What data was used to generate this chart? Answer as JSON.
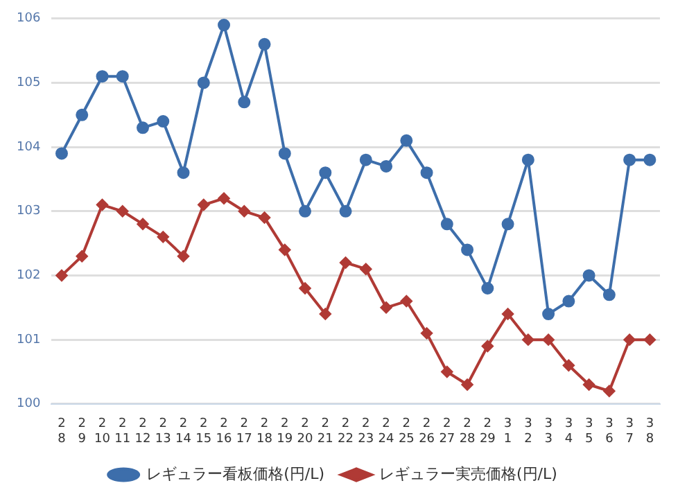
{
  "chart_data": {
    "type": "line",
    "categories": [
      "2\n8",
      "2\n9",
      "2\n10",
      "2\n11",
      "2\n12",
      "2\n13",
      "2\n14",
      "2\n15",
      "2\n16",
      "2\n17",
      "2\n18",
      "2\n19",
      "2\n20",
      "2\n21",
      "2\n22",
      "2\n23",
      "2\n24",
      "2\n25",
      "2\n26",
      "2\n27",
      "2\n28",
      "2\n29",
      "3\n1",
      "3\n2",
      "3\n3",
      "3\n4",
      "3\n5",
      "3\n6",
      "3\n7",
      "3\n8"
    ],
    "series": [
      {
        "name": "レギュラー看板価格(円/L)",
        "color": "#3d6eab",
        "marker": "circle",
        "values": [
          103.9,
          104.5,
          105.1,
          105.1,
          104.3,
          104.4,
          103.6,
          105.0,
          105.9,
          104.7,
          105.6,
          103.9,
          103.0,
          103.6,
          103.0,
          103.8,
          103.7,
          104.1,
          103.6,
          102.8,
          102.4,
          101.8,
          102.8,
          103.8,
          101.4,
          101.6,
          102.0,
          101.7,
          103.8,
          103.8
        ]
      },
      {
        "name": "レギュラー実売価格(円/L)",
        "color": "#b03a35",
        "marker": "diamond",
        "values": [
          102.0,
          102.3,
          103.1,
          103.0,
          102.8,
          102.6,
          102.3,
          103.1,
          103.2,
          103.0,
          102.9,
          102.4,
          101.8,
          101.4,
          102.2,
          102.1,
          101.5,
          101.6,
          101.1,
          100.5,
          100.3,
          100.9,
          101.4,
          101.0,
          101.0,
          100.6,
          100.3,
          100.2,
          101.0,
          101.0
        ]
      }
    ],
    "ylim": [
      100,
      106
    ],
    "yticks": [
      100,
      101,
      102,
      103,
      104,
      105,
      106
    ],
    "grid": "y",
    "legend": "bottom",
    "line_style": "solid"
  }
}
